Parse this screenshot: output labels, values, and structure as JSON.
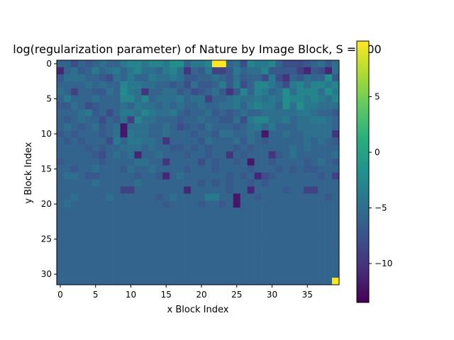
{
  "chart_data": {
    "type": "heatmap",
    "title": "log(regularization parameter) of Nature by Image Block, S = 100",
    "xlabel": "x Block Index",
    "ylabel": "y Block Index",
    "x_ticks": [
      0,
      5,
      10,
      15,
      20,
      25,
      30,
      35
    ],
    "y_ticks": [
      0,
      5,
      10,
      15,
      20,
      25,
      30
    ],
    "colorbar_ticks": [
      5,
      0,
      -5,
      -10
    ],
    "colorbar_range": [
      -13.5,
      10
    ],
    "grid": false,
    "colormap": "viridis",
    "columns": 40,
    "rows": 32,
    "values": [
      [
        -6,
        -6,
        -8,
        -6,
        -7,
        -6,
        -5,
        -6,
        -6,
        -4,
        -3,
        -3,
        -4,
        -3,
        -3,
        -4,
        -2,
        -2,
        -6,
        -4,
        -4,
        -3,
        10,
        10,
        -6,
        -5,
        -8,
        -3,
        -4,
        -4,
        -3,
        -6,
        -8,
        -8,
        -8,
        -7,
        -6,
        -5,
        -7,
        -5
      ],
      [
        -11,
        -6,
        -5,
        -7,
        -6,
        -4,
        -6,
        -5,
        -4,
        -6,
        -4,
        -3,
        -5,
        -5,
        -6,
        -4,
        -3,
        -5,
        -10,
        -6,
        -7,
        -4,
        -9,
        -9,
        -7,
        -4,
        -6,
        -5,
        -5,
        -3,
        -7,
        -7,
        -7,
        -7,
        -9,
        -11,
        -7,
        -8,
        -11,
        -5
      ],
      [
        -7,
        -5,
        -5,
        -5,
        -6,
        -6,
        -7,
        -8,
        -5,
        -6,
        -4,
        -6,
        -6,
        -4,
        -5,
        -5,
        -4,
        -5,
        -7,
        -7,
        -6,
        -6,
        -5,
        -6,
        -7,
        -5,
        -7,
        -6,
        -6,
        -8,
        -4,
        -8,
        -10,
        -6,
        -7,
        -5,
        -6,
        -6,
        -2,
        -7
      ],
      [
        -6,
        -6,
        -6,
        -6,
        -5,
        -6,
        -5,
        -6,
        -6,
        -3,
        -4,
        -4,
        -5,
        -5,
        -6,
        -6,
        -7,
        -6,
        -8,
        -5,
        -7,
        -7,
        -6,
        -4,
        -7,
        -4,
        -8,
        -6,
        -3,
        -3,
        -4,
        -6,
        -8,
        -4,
        -3,
        -5,
        -3,
        -3,
        -4,
        -3
      ],
      [
        -5,
        -6,
        -9,
        -6,
        -6,
        -7,
        -7,
        -5,
        -6,
        -2,
        -4,
        -5,
        -10,
        -6,
        -6,
        -5,
        -5,
        -7,
        -6,
        -8,
        -7,
        -6,
        -5,
        -7,
        -10,
        -7,
        -3,
        -6,
        -3,
        -4,
        -6,
        -5,
        -2,
        -5,
        -3,
        -3,
        -3,
        -5,
        -2,
        -4
      ],
      [
        -6,
        -4,
        -6,
        -6,
        -6,
        -5,
        -6,
        -6,
        -6,
        -3,
        -3,
        -5,
        -3,
        -6,
        -5,
        -5,
        -5,
        -4,
        -6,
        -5,
        -5,
        -9,
        -6,
        -6,
        -5,
        -4,
        -5,
        -5,
        -4,
        -5,
        -4,
        -5,
        -2,
        -3,
        -3,
        -4,
        -3,
        -4,
        -5,
        -3
      ],
      [
        -7,
        -7,
        -5,
        -6,
        -8,
        -7,
        -6,
        -6,
        -6,
        -5,
        -6,
        -4,
        -5,
        -5,
        -6,
        -5,
        -6,
        -5,
        -6,
        -6,
        -5,
        -6,
        -6,
        -5,
        -5,
        -4,
        -6,
        -4,
        -3,
        -4,
        -4,
        -6,
        -2,
        -5,
        -2,
        -4,
        -4,
        -5,
        -5,
        -5
      ],
      [
        -6,
        -6,
        -6,
        -5,
        -4,
        -7,
        -6,
        -8,
        -6,
        -4,
        -4,
        -5,
        -3,
        -4,
        -5,
        -5,
        -4,
        -6,
        -7,
        -6,
        -6,
        -5,
        -7,
        -6,
        -7,
        -6,
        -5,
        -6,
        -6,
        -5,
        -5,
        -5,
        -5,
        -5,
        -4,
        -4,
        -5,
        -6,
        -6,
        -7
      ],
      [
        -6,
        -7,
        -6,
        -5,
        -6,
        -6,
        -8,
        -6,
        -7,
        -5,
        -9,
        -3,
        -5,
        -5,
        -6,
        -6,
        -6,
        -7,
        -6,
        -6,
        -5,
        -6,
        -6,
        -7,
        -7,
        -5,
        -8,
        -4,
        -3,
        -3,
        -5,
        -5,
        -4,
        -6,
        -5,
        -5,
        -4,
        -4,
        -5,
        -6
      ],
      [
        -6,
        -5,
        -6,
        -7,
        -6,
        -5,
        -7,
        -6,
        -5,
        -12,
        -5,
        -5,
        -5,
        -6,
        -6,
        -5,
        -6,
        -8,
        -7,
        -6,
        -7,
        -5,
        -6,
        -6,
        -6,
        -7,
        -6,
        -5,
        -4,
        -6,
        -4,
        -6,
        -6,
        -6,
        -5,
        -5,
        -5,
        -5,
        -5,
        -6
      ],
      [
        -7,
        -6,
        -7,
        -6,
        -6,
        -6,
        -7,
        -6,
        -5,
        -12,
        -4,
        -5,
        -5,
        -6,
        -6,
        -5,
        -6,
        -6,
        -6,
        -7,
        -6,
        -6,
        -7,
        -5,
        -5,
        -6,
        -6,
        -5,
        -6,
        -12,
        -6,
        -6,
        -5,
        -6,
        -6,
        -5,
        -5,
        -5,
        -5,
        -10
      ],
      [
        -6,
        -7,
        -6,
        -7,
        -6,
        -6,
        -6,
        -8,
        -4,
        -6,
        -4,
        -4,
        -5,
        -5,
        -6,
        -10,
        -6,
        -6,
        -6,
        -6,
        -7,
        -5,
        -6,
        -6,
        -6,
        -5,
        -7,
        -5,
        -6,
        -7,
        -6,
        -6,
        -6,
        -6,
        -6,
        -5,
        -6,
        -5,
        -6,
        -7
      ],
      [
        -6,
        -6,
        -6,
        -6,
        -7,
        -6,
        -7,
        -6,
        -6,
        -5,
        -5,
        -5,
        -6,
        -5,
        -6,
        -6,
        -7,
        -7,
        -6,
        -7,
        -6,
        -7,
        -6,
        -6,
        -6,
        -7,
        -6,
        -7,
        -6,
        -6,
        -6,
        -6,
        -6,
        -5,
        -6,
        -5,
        -6,
        -6,
        -6,
        -6
      ],
      [
        -6,
        -6,
        -6,
        -6,
        -6,
        -7,
        -8,
        -6,
        -5,
        -6,
        -5,
        -11,
        -6,
        -6,
        -5,
        -6,
        -6,
        -6,
        -7,
        -6,
        -6,
        -7,
        -6,
        -6,
        -10,
        -6,
        -7,
        -6,
        -6,
        -6,
        -10,
        -7,
        -6,
        -5,
        -6,
        -6,
        -6,
        -6,
        -6,
        -5
      ],
      [
        -7,
        -6,
        -6,
        -6,
        -6,
        -6,
        -7,
        -6,
        -6,
        -6,
        -6,
        -5,
        -5,
        -6,
        -6,
        -10,
        -6,
        -6,
        -6,
        -6,
        -8,
        -6,
        -7,
        -6,
        -6,
        -7,
        -6,
        -12,
        -6,
        -6,
        -7,
        -6,
        -6,
        -6,
        -6,
        -7,
        -6,
        -5,
        -6,
        -7
      ],
      [
        -6,
        -6,
        -7,
        -6,
        -6,
        -5,
        -6,
        -6,
        -6,
        -7,
        -5,
        -6,
        -6,
        -5,
        -6,
        -6,
        -6,
        -6,
        -7,
        -6,
        -6,
        -6,
        -7,
        -6,
        -6,
        -6,
        -6,
        -7,
        -6,
        -6,
        -6,
        -7,
        -6,
        -7,
        -6,
        -7,
        -7,
        -6,
        -6,
        -6
      ],
      [
        -6,
        -5,
        -5,
        -6,
        -7,
        -7,
        -6,
        -6,
        -6,
        -6,
        -6,
        -7,
        -6,
        -6,
        -7,
        -11,
        -6,
        -5,
        -6,
        -6,
        -6,
        -6,
        -6,
        -6,
        -7,
        -6,
        -7,
        -6,
        -11,
        -8,
        -7,
        -6,
        -6,
        -6,
        -6,
        -6,
        -6,
        -7,
        -6,
        -9
      ],
      [
        -6,
        -6,
        -6,
        -6,
        -6,
        -5,
        -6,
        -6,
        -6,
        -6,
        -6,
        -5,
        -6,
        -6,
        -6,
        -6,
        -6,
        -6,
        -6,
        -6,
        -7,
        -6,
        -7,
        -6,
        -7,
        -6,
        -6,
        -7,
        -6,
        -7,
        -6,
        -6,
        -6,
        -6,
        -6,
        -6,
        -6,
        -6,
        -6,
        -6
      ],
      [
        -6,
        -6,
        -6,
        -6,
        -6,
        -6,
        -6,
        -6,
        -6,
        -9,
        -9,
        -6,
        -6,
        -6,
        -6,
        -6,
        -6,
        -6,
        -11,
        -6,
        -6,
        -6,
        -6,
        -6,
        -7,
        -6,
        -6,
        -11,
        -6,
        -6,
        -6,
        -6,
        -7,
        -6,
        -6,
        -9,
        -9,
        -6,
        -6,
        -6
      ],
      [
        -6,
        -6,
        -5,
        -6,
        -6,
        -6,
        -6,
        -5,
        -6,
        -6,
        -6,
        -6,
        -6,
        -6,
        -7,
        -6,
        -5,
        -6,
        -6,
        -6,
        -6,
        -4,
        -4,
        -6,
        -6,
        -12,
        -6,
        -6,
        -7,
        -6,
        -6,
        -6,
        -6,
        -6,
        -6,
        -6,
        -6,
        -6,
        -7,
        -6
      ],
      [
        -6,
        -5,
        -6,
        -6,
        -6,
        -6,
        -6,
        -6,
        -6,
        -6,
        -6,
        -6,
        -6,
        -6,
        -6,
        -7,
        -6,
        -6,
        -6,
        -6,
        -7,
        -6,
        -6,
        -7,
        -6,
        -12,
        -6,
        -6,
        -6,
        -6,
        -6,
        -6,
        -6,
        -6,
        -6,
        -6,
        -6,
        -6,
        -6,
        -6
      ],
      [
        -6,
        -6,
        -6,
        -6,
        -6,
        -6,
        -6,
        -6,
        -6,
        -6,
        -6,
        -6,
        -6,
        -6,
        -6,
        -6,
        -6,
        -6,
        -6,
        -6,
        -6,
        -6,
        -6,
        -6,
        -6,
        -6,
        -6,
        -6,
        -6,
        -6,
        -6,
        -6,
        -6,
        -6,
        -6,
        -6,
        -6,
        -6,
        -6,
        -6
      ],
      [
        -6,
        -6,
        -6,
        -6,
        -6,
        -6,
        -6,
        -6,
        -6,
        -6,
        -6,
        -6,
        -6,
        -6,
        -6,
        -6,
        -6,
        -6,
        -6,
        -6,
        -6,
        -6,
        -6,
        -6,
        -6,
        -6,
        -6,
        -6,
        -6,
        -6,
        -6,
        -6,
        -6,
        -6,
        -6,
        -6,
        -6,
        -6,
        -6,
        -6
      ],
      [
        -6,
        -6,
        -6,
        -6,
        -6,
        -6,
        -6,
        -6,
        -6,
        -6,
        -6,
        -6,
        -6,
        -6,
        -6,
        -6,
        -6,
        -6,
        -6,
        -6,
        -6,
        -6,
        -6,
        -6,
        -6,
        -6,
        -6,
        -6,
        -6,
        -6,
        -6,
        -6,
        -6,
        -6,
        -6,
        -6,
        -6,
        -6,
        -6,
        -6
      ],
      [
        -6,
        -6,
        -6,
        -6,
        -6,
        -6,
        -6,
        -6,
        -6,
        -6,
        -6,
        -6,
        -6,
        -6,
        -6,
        -6,
        -6,
        -6,
        -6,
        -6,
        -6,
        -6,
        -6,
        -6,
        -6,
        -6,
        -6,
        -6,
        -6,
        -6,
        -6,
        -6,
        -6,
        -6,
        -6,
        -6,
        -6,
        -6,
        -6,
        -6
      ],
      [
        -6,
        -6,
        -6,
        -6,
        -6,
        -6,
        -6,
        -6,
        -6,
        -6,
        -6,
        -6,
        -6,
        -6,
        -6,
        -6,
        -6,
        -6,
        -6,
        -6,
        -6,
        -6,
        -6,
        -6,
        -6,
        -6,
        -6,
        -6,
        -6,
        -6,
        -6,
        -6,
        -6,
        -6,
        -6,
        -6,
        -6,
        -6,
        -6,
        -6
      ],
      [
        -6,
        -6,
        -6,
        -6,
        -6,
        -6,
        -6,
        -6,
        -6,
        -6,
        -6,
        -6,
        -6,
        -6,
        -6,
        -6,
        -6,
        -6,
        -6,
        -6,
        -6,
        -6,
        -6,
        -6,
        -6,
        -6,
        -6,
        -6,
        -6,
        -6,
        -6,
        -6,
        -6,
        -6,
        -6,
        -6,
        -6,
        -6,
        -6,
        -6
      ],
      [
        -6,
        -6,
        -6,
        -6,
        -6,
        -6,
        -6,
        -6,
        -6,
        -6,
        -6,
        -6,
        -6,
        -6,
        -6,
        -6,
        -6,
        -6,
        -6,
        -6,
        -6,
        -6,
        -6,
        -6,
        -6,
        -6,
        -6,
        -6,
        -6,
        -6,
        -6,
        -6,
        -6,
        -6,
        -6,
        -6,
        -6,
        -6,
        -6,
        -6
      ],
      [
        -6,
        -6,
        -6,
        -6,
        -6,
        -6,
        -6,
        -6,
        -6,
        -6,
        -6,
        -6,
        -6,
        -6,
        -6,
        -6,
        -6,
        -6,
        -6,
        -6,
        -6,
        -6,
        -6,
        -6,
        -6,
        -6,
        -6,
        -6,
        -6,
        -6,
        -6,
        -6,
        -6,
        -6,
        -6,
        -6,
        -6,
        -6,
        -6,
        -6
      ],
      [
        -6,
        -6,
        -6,
        -6,
        -6,
        -6,
        -6,
        -6,
        -6,
        -6,
        -6,
        -6,
        -6,
        -6,
        -6,
        -6,
        -6,
        -6,
        -6,
        -6,
        -6,
        -6,
        -6,
        -6,
        -6,
        -6,
        -6,
        -6,
        -6,
        -6,
        -6,
        -6,
        -6,
        -6,
        -6,
        -6,
        -6,
        -6,
        -6,
        -6
      ],
      [
        -6,
        -6,
        -6,
        -6,
        -6,
        -6,
        -6,
        -6,
        -6,
        -6,
        -6,
        -6,
        -6,
        -6,
        -6,
        -6,
        -6,
        -6,
        -6,
        -6,
        -6,
        -6,
        -6,
        -6,
        -6,
        -6,
        -6,
        -6,
        -6,
        -6,
        -6,
        -6,
        -6,
        -6,
        -6,
        -6,
        -6,
        -6,
        -6,
        -6
      ],
      [
        -6,
        -6,
        -6,
        -6,
        -6,
        -6,
        -6,
        -6,
        -6,
        -6,
        -6,
        -6,
        -6,
        -6,
        -6,
        -6,
        -6,
        -6,
        -6,
        -6,
        -6,
        -6,
        -6,
        -6,
        -6,
        -6,
        -6,
        -6,
        -6,
        -6,
        -6,
        -6,
        -6,
        -6,
        -6,
        -6,
        -6,
        -6,
        -6,
        10
      ]
    ]
  }
}
